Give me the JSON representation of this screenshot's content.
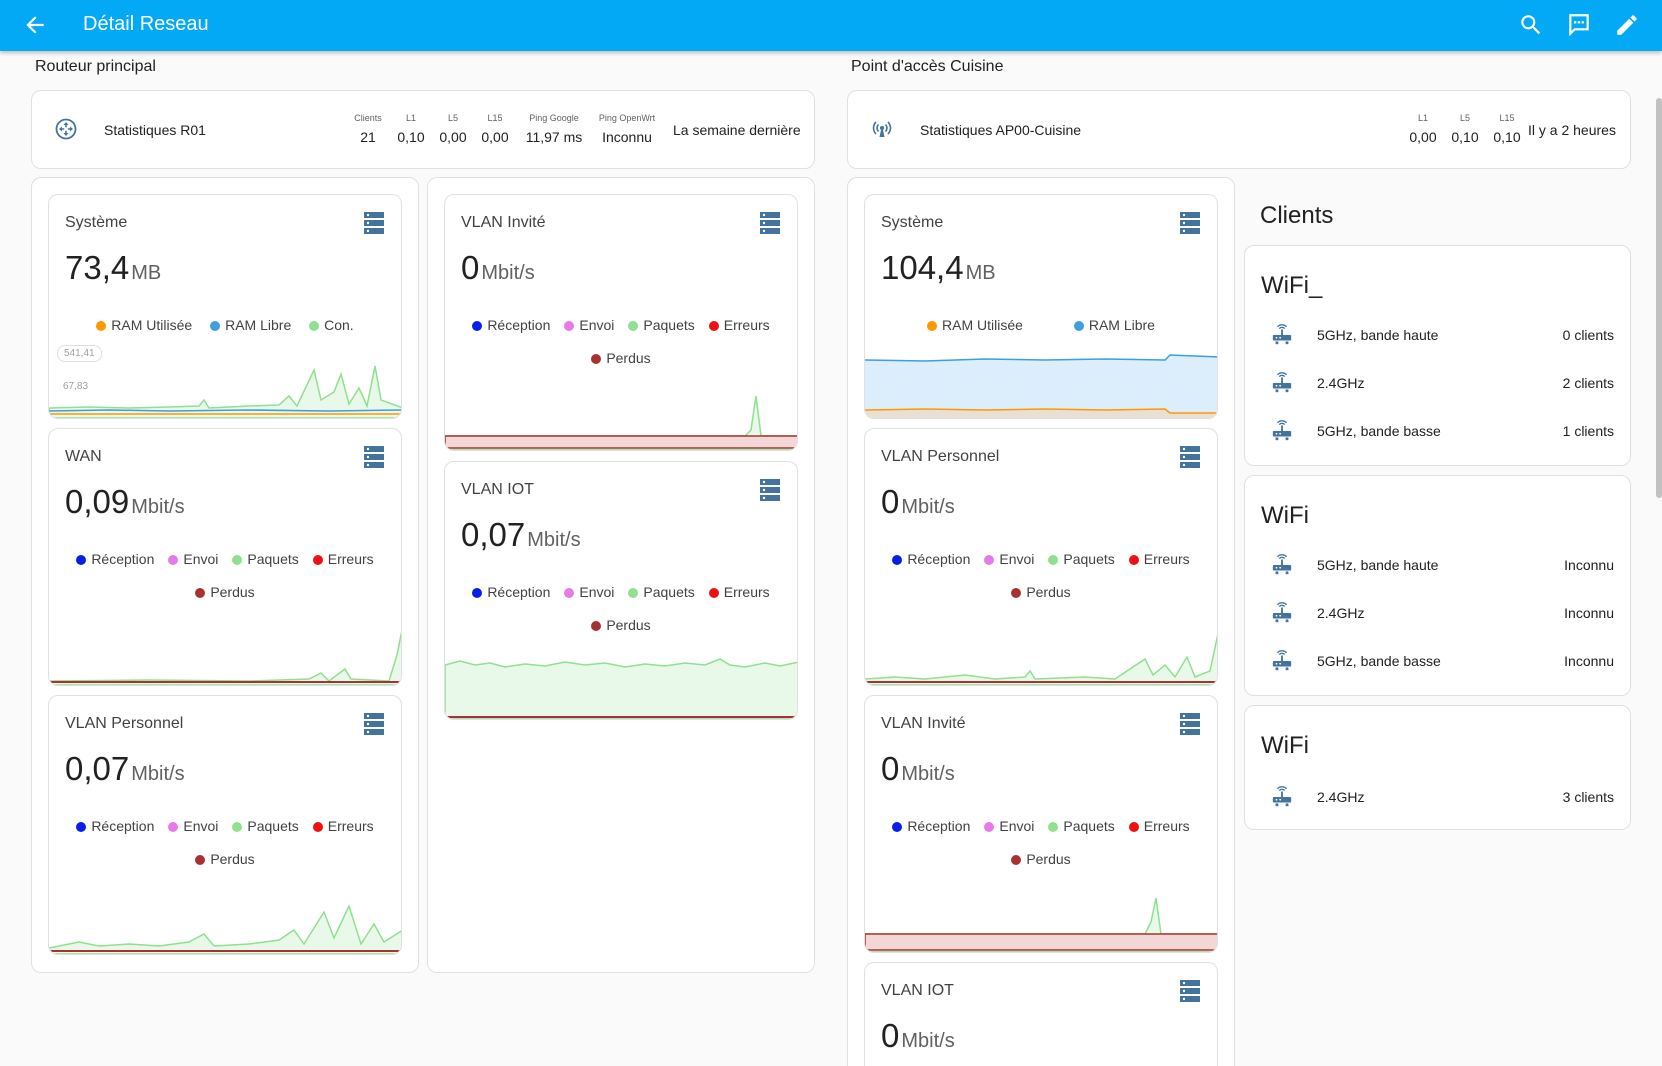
{
  "header": {
    "title": "Détail Reseau"
  },
  "router": {
    "section_title": "Routeur principal",
    "name": "Statistiques R01",
    "stats": [
      {
        "label": "Clients",
        "value": "21"
      },
      {
        "label": "L1",
        "value": "0,10"
      },
      {
        "label": "L5",
        "value": "0,00"
      },
      {
        "label": "L15",
        "value": "0,00"
      },
      {
        "label": "Ping Google",
        "value": "11,97 ms"
      },
      {
        "label": "Ping OpenWrt",
        "value": "Inconnu"
      }
    ],
    "when": "La semaine dernière"
  },
  "ap": {
    "section_title": "Point d'accès Cuisine",
    "name": "Statistiques AP00-Cuisine",
    "stats": [
      {
        "label": "L1",
        "value": "0,00"
      },
      {
        "label": "L5",
        "value": "0,10"
      },
      {
        "label": "L15",
        "value": "0,10"
      }
    ],
    "when": "Il y a 2 heures"
  },
  "legend": {
    "ram_used": "RAM Utilisée",
    "ram_free": "RAM Libre",
    "con": "Con.",
    "rx": "Réception",
    "tx": "Envoi",
    "packets": "Paquets",
    "errors": "Erreurs",
    "lost": "Perdus"
  },
  "colors": {
    "header": "#03a9f4",
    "ram_used": "#ff9800",
    "ram_free": "#3d9ee0",
    "con": "#8fe08f",
    "rx": "#0a1ee8",
    "tx": "#e879e8",
    "packets": "#8fe08f",
    "errors": "#ee1111",
    "lost": "#a83232",
    "icon": "#44739e"
  },
  "cards": {
    "r_sys": {
      "title": "Système",
      "value": "73,4",
      "unit": "MB",
      "ylab_top": "541,41",
      "ylab_bottom": "67,83"
    },
    "r_wan": {
      "title": "WAN",
      "value": "0,09",
      "unit": "Mbit/s"
    },
    "r_vlan_perso": {
      "title": "VLAN Personnel",
      "value": "0,07",
      "unit": "Mbit/s"
    },
    "r_vlan_invite": {
      "title": "VLAN Invité",
      "value": "0",
      "unit": "Mbit/s"
    },
    "r_vlan_iot": {
      "title": "VLAN IOT",
      "value": "0,07",
      "unit": "Mbit/s"
    },
    "a_sys": {
      "title": "Système",
      "value": "104,4",
      "unit": "MB"
    },
    "a_vlan_perso": {
      "title": "VLAN Personnel",
      "value": "0",
      "unit": "Mbit/s"
    },
    "a_vlan_invite": {
      "title": "VLAN Invité",
      "value": "0",
      "unit": "Mbit/s"
    },
    "a_vlan_iot": {
      "title": "VLAN IOT",
      "value": "0",
      "unit": "Mbit/s"
    }
  },
  "clients": {
    "title": "Clients",
    "groups": [
      {
        "title": "WiFi_",
        "rows": [
          {
            "label": "5GHz, bande haute",
            "value": "0 clients"
          },
          {
            "label": "2.4GHz",
            "value": "2 clients"
          },
          {
            "label": "5GHz, bande basse",
            "value": "1 clients"
          }
        ]
      },
      {
        "title": "WiFi",
        "rows": [
          {
            "label": "5GHz, bande haute",
            "value": "Inconnu"
          },
          {
            "label": "2.4GHz",
            "value": "Inconnu"
          },
          {
            "label": "5GHz, bande basse",
            "value": "Inconnu"
          }
        ]
      },
      {
        "title": "WiFi",
        "rows": [
          {
            "label": "2.4GHz",
            "value": "3 clients"
          }
        ]
      }
    ]
  }
}
